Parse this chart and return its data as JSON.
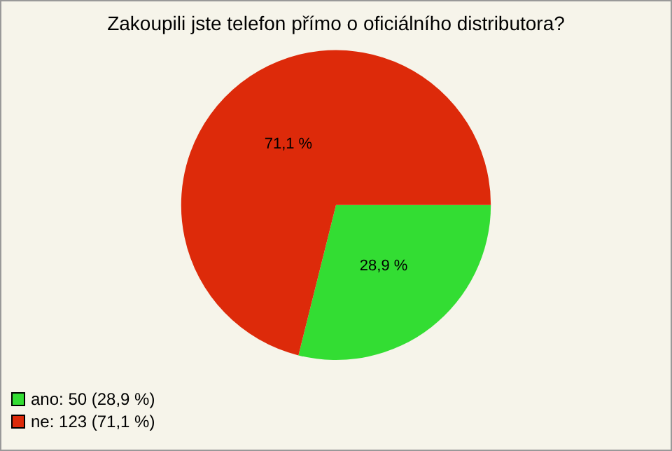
{
  "chart_data": {
    "type": "pie",
    "title": "Zakoupili jste telefon přímo o oficiálního distributora?",
    "categories": [
      "ano: 50 (28,9 %)",
      "ne: 123 (71,1 %)"
    ],
    "values": [
      28.9,
      71.1
    ],
    "value_labels": [
      "28,9 %",
      "71,1 %"
    ],
    "colors": [
      "#33dd33",
      "#dd2a0a"
    ],
    "legend": "bottom left"
  }
}
